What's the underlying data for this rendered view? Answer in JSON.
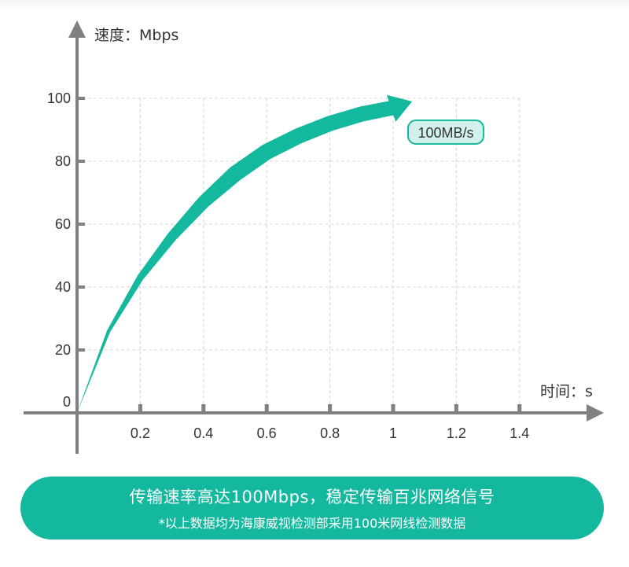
{
  "chart_data": {
    "type": "line",
    "ylabel": "速度：Mbps",
    "xlabel": "时间：s",
    "x_ticks": [
      "0.2",
      "0.4",
      "0.6",
      "0.8",
      "1",
      "1.2",
      "1.4"
    ],
    "y_ticks": [
      "0",
      "20",
      "40",
      "60",
      "80",
      "100"
    ],
    "xlim": [
      0,
      1.4
    ],
    "ylim": [
      0,
      100
    ],
    "grid": true,
    "series": [
      {
        "x": [
          0,
          0.1,
          0.2,
          0.3,
          0.4,
          0.5,
          0.6,
          0.7,
          0.8,
          0.9,
          1.0,
          1.06
        ],
        "y": [
          0,
          26,
          43,
          56,
          67,
          76,
          83,
          88,
          92,
          95,
          97,
          99
        ]
      }
    ],
    "annotation": "100MB/s",
    "colors": {
      "curve": "#13b89e",
      "axis": "#808080",
      "grid": "#d4d4d4",
      "text": "#333333"
    }
  },
  "banner": {
    "title": "传输速率高达100Mbps，稳定传输百兆网络信号",
    "note": "*以上数据均为海康威视检测部采用100米网线检测数据",
    "color": "#13b89e"
  }
}
